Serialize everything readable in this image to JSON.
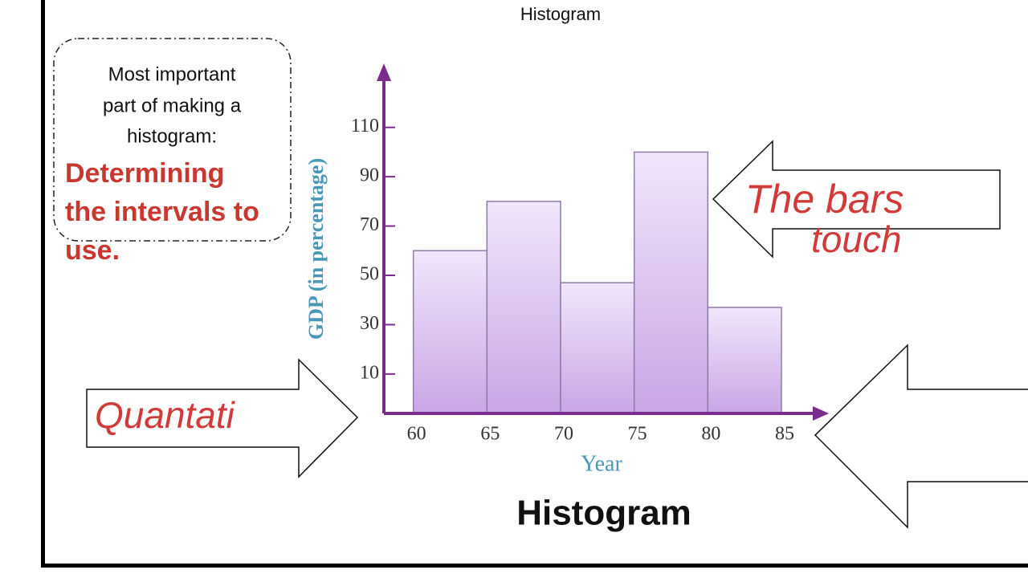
{
  "slide": {
    "title": "Histogram",
    "note_lines": [
      "Most important",
      "part of making a",
      "histogram:"
    ],
    "emphasis_lines": [
      "Determining",
      "the intervals to",
      "use."
    ],
    "handwriting_right": [
      "The bars",
      "touch"
    ],
    "handwriting_left": "Quantati"
  },
  "chart_data": {
    "type": "histogram",
    "title": "Histogram",
    "x_label": "Year",
    "y_label": "GDP (in percentage)",
    "bins": [
      60,
      65,
      70,
      75,
      80,
      85
    ],
    "values": [
      60,
      80,
      47,
      100,
      37
    ],
    "color": "#dcc6f0",
    "xlim": [
      58,
      88
    ],
    "xticks": [
      60,
      65,
      70,
      75,
      80,
      85
    ],
    "ylim": [
      -6,
      134
    ],
    "yticks": [
      10,
      30,
      50,
      70,
      90,
      110
    ]
  }
}
